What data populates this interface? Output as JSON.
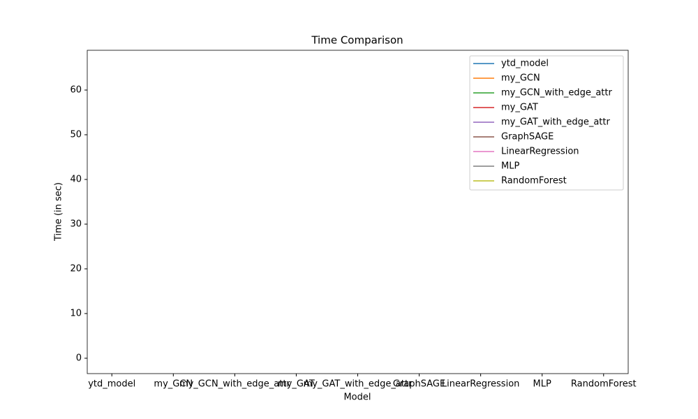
{
  "chart_data": {
    "type": "line",
    "title": "Time Comparison",
    "x_label": "Model",
    "y_label": "Time (in sec)",
    "categories": [
      "ytd_model",
      "my_GCN",
      "my_GCN_with_edge_attr",
      "my_GAT",
      "my_GAT_with_edge_attr",
      "GraphSAGE",
      "LinearRegression",
      "MLP",
      "RandomForest"
    ],
    "ylim": [
      -3.44,
      68.9
    ],
    "yticks": [
      0,
      10,
      20,
      30,
      40,
      50,
      60
    ],
    "legend": "upper right",
    "series": [
      {
        "name": "ytd_model",
        "color": "#1f77b4",
        "values": [
          null,
          null,
          null,
          null,
          null,
          null,
          null,
          null,
          null
        ]
      },
      {
        "name": "my_GCN",
        "color": "#ff7f0e",
        "values": [
          null,
          null,
          null,
          null,
          null,
          null,
          null,
          null,
          null
        ]
      },
      {
        "name": "my_GCN_with_edge_attr",
        "color": "#2ca02c",
        "values": [
          null,
          null,
          null,
          null,
          null,
          null,
          null,
          null,
          null
        ]
      },
      {
        "name": "my_GAT",
        "color": "#d62728",
        "values": [
          null,
          null,
          null,
          null,
          null,
          null,
          null,
          null,
          null
        ]
      },
      {
        "name": "my_GAT_with_edge_attr",
        "color": "#9467bd",
        "values": [
          null,
          null,
          null,
          null,
          null,
          null,
          null,
          null,
          null
        ]
      },
      {
        "name": "GraphSAGE",
        "color": "#8c564b",
        "values": [
          null,
          null,
          null,
          null,
          null,
          null,
          null,
          null,
          null
        ]
      },
      {
        "name": "LinearRegression",
        "color": "#e377c2",
        "values": [
          null,
          null,
          null,
          null,
          null,
          null,
          null,
          null,
          null
        ]
      },
      {
        "name": "MLP",
        "color": "#7f7f7f",
        "values": [
          null,
          null,
          null,
          null,
          null,
          null,
          null,
          null,
          null
        ]
      },
      {
        "name": "RandomForest",
        "color": "#bcbd22",
        "values": [
          null,
          null,
          null,
          null,
          null,
          null,
          null,
          null,
          null
        ]
      }
    ]
  }
}
